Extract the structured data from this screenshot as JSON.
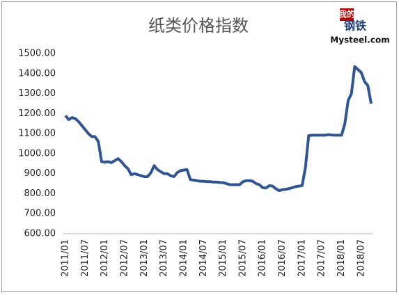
{
  "chart_data": {
    "type": "line",
    "title": "纸类价格指数",
    "logo": {
      "top": "我的",
      "middle": "钢铁",
      "bottom": "Mysteel.com"
    },
    "categories": [
      "2011/01",
      null,
      null,
      null,
      null,
      null,
      "2011/07",
      null,
      null,
      null,
      null,
      null,
      "2012/01",
      null,
      null,
      null,
      null,
      null,
      "2012/07",
      null,
      null,
      null,
      null,
      null,
      "2013/01",
      null,
      null,
      null,
      null,
      null,
      "2013/07",
      null,
      null,
      null,
      null,
      null,
      "2014/01",
      null,
      null,
      null,
      null,
      null,
      "2014/07",
      null,
      null,
      null,
      null,
      null,
      "2015/01",
      null,
      null,
      null,
      null,
      null,
      "2015/07",
      null,
      null,
      null,
      null,
      null,
      "2016/01",
      null,
      null,
      null,
      null,
      null,
      "2016/07",
      null,
      null,
      null,
      null,
      null,
      "2017/01",
      null,
      null,
      null,
      null,
      null,
      "2017/07",
      null,
      null,
      null,
      null,
      null,
      "2018/01",
      null,
      null,
      null,
      null,
      null,
      "2018/07",
      null,
      null,
      null
    ],
    "series": [
      {
        "color": "#2f5597",
        "values": [
          1190,
          1170,
          1180,
          1175,
          1160,
          1140,
          1120,
          1100,
          1085,
          1085,
          1060,
          960,
          958,
          960,
          955,
          965,
          975,
          960,
          940,
          925,
          895,
          900,
          895,
          890,
          885,
          885,
          905,
          940,
          920,
          910,
          900,
          900,
          890,
          885,
          905,
          915,
          918,
          920,
          870,
          868,
          865,
          862,
          862,
          860,
          860,
          858,
          858,
          856,
          855,
          850,
          845,
          845,
          845,
          845,
          860,
          865,
          865,
          862,
          850,
          845,
          830,
          828,
          840,
          838,
          825,
          815,
          820,
          822,
          825,
          830,
          835,
          838,
          840,
          930,
          1090,
          1092,
          1092,
          1092,
          1092,
          1092,
          1095,
          1093,
          1092,
          1092,
          1092,
          1150,
          1265,
          1300,
          1435,
          1420,
          1405,
          1360,
          1340,
          1250
        ]
      }
    ],
    "ylim": [
      600,
      1500
    ],
    "yticks": [
      {
        "value": 600,
        "label": "600.00"
      },
      {
        "value": 700,
        "label": "700.00"
      },
      {
        "value": 800,
        "label": "800.00"
      },
      {
        "value": 900,
        "label": "900.00"
      },
      {
        "value": 1000,
        "label": "1000.00"
      },
      {
        "value": 1100,
        "label": "1100.00"
      },
      {
        "value": 1200,
        "label": "1200.00"
      },
      {
        "value": 1300,
        "label": "1300.00"
      },
      {
        "value": 1400,
        "label": "1400.00"
      },
      {
        "value": 1500,
        "label": "1500.00"
      }
    ]
  }
}
